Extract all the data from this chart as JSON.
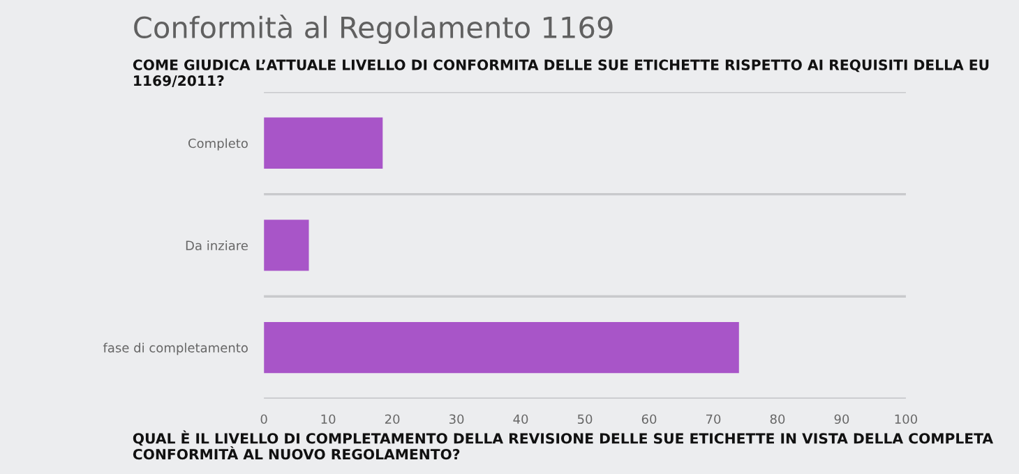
{
  "chart_data": {
    "type": "bar",
    "orientation": "horizontal",
    "title": "Conformità al Regolamento 1169",
    "subtitle": "COME GIUDICA L’ATTUALE LIVELLO DI CONFORMITA DELLE SUE ETICHETTE RISPETTO AI REQUISITI DELLA EU 1169/2011?",
    "categories": [
      "Completo",
      "Da inziare",
      "fase di completamento"
    ],
    "values": [
      18.5,
      7,
      74
    ],
    "color": "#a855c8",
    "xlim": [
      0,
      100
    ],
    "xticks": [
      0,
      10,
      20,
      30,
      40,
      50,
      60,
      70,
      80,
      90,
      100
    ],
    "grid": "y",
    "annotations": [
      "QUAL È IL LIVELLO DI COMPLETAMENTO DELLA REVISIONE DELLE SUE ETICHETTE IN VISTA DELLA COMPLETA CONFORMITÀ AL NUOVO REGOLAMENTO?"
    ]
  }
}
